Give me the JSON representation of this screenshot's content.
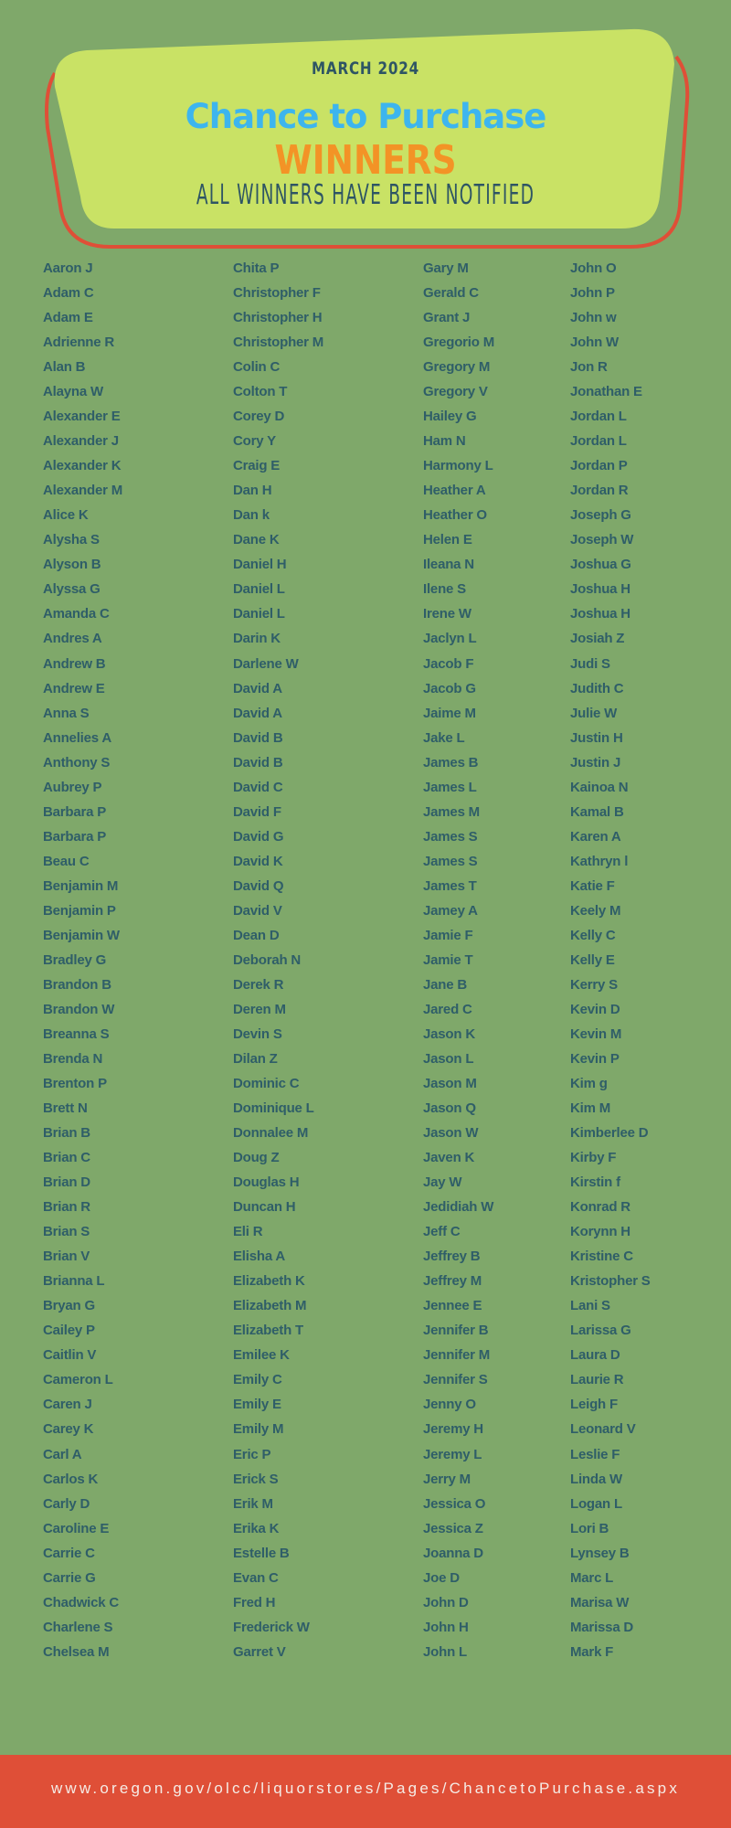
{
  "header": {
    "month": "MARCH 2024",
    "title": "Chance to Purchase",
    "winners": "WINNERS",
    "subtitle": "ALL WINNERS HAVE BEEN NOTIFIED"
  },
  "colors": {
    "background": "#7fa86a",
    "banner": "#c9e265",
    "outline": "#df4f37",
    "title": "#3db5ee",
    "winners": "#f39326",
    "text": "#2f5e68"
  },
  "winners": {
    "columns": [
      [
        "Aaron J",
        "Adam C",
        "Adam E",
        "Adrienne R",
        "Alan B",
        "Alayna W",
        "Alexander E",
        "Alexander J",
        "Alexander K",
        "Alexander M",
        "Alice K",
        "Alysha S",
        "Alyson B",
        "Alyssa G",
        "Amanda C",
        "Andres A",
        "Andrew B",
        "Andrew E",
        "Anna S",
        "Annelies A",
        "Anthony S",
        "Aubrey P",
        "Barbara P",
        "Barbara P",
        "Beau C",
        "Benjamin M",
        "Benjamin P",
        "Benjamin W",
        "Bradley G",
        "Brandon B",
        "Brandon W",
        "Breanna S",
        "Brenda N",
        "Brenton P",
        "Brett N",
        "Brian B",
        "Brian C",
        "Brian D",
        "Brian R",
        "Brian S",
        "Brian V",
        "Brianna L",
        "Bryan G",
        "Cailey P",
        "Caitlin V",
        "Cameron L",
        "Caren J",
        "Carey K",
        "Carl A",
        "Carlos K",
        "Carly D",
        "Caroline E",
        "Carrie C",
        "Carrie G",
        "Chadwick C",
        "Charlene S",
        "Chelsea M"
      ],
      [
        "Chita P",
        "Christopher F",
        "Christopher H",
        "Christopher M",
        "Colin C",
        "Colton T",
        "Corey D",
        "Cory Y",
        "Craig E",
        "Dan H",
        "Dan k",
        "Dane K",
        "Daniel H",
        "Daniel L",
        "Daniel L",
        "Darin K",
        "Darlene W",
        "David A",
        "David A",
        "David B",
        "David B",
        "David C",
        "David F",
        "David G",
        "David K",
        "David Q",
        "David V",
        "Dean D",
        "Deborah N",
        "Derek R",
        "Deren M",
        "Devin S",
        "Dilan Z",
        "Dominic C",
        "Dominique L",
        "Donnalee M",
        "Doug Z",
        "Douglas H",
        "Duncan H",
        "Eli R",
        "Elisha A",
        "Elizabeth K",
        "Elizabeth M",
        "Elizabeth T",
        "Emilee K",
        "Emily C",
        "Emily E",
        "Emily M",
        "Eric P",
        "Erick S",
        "Erik M",
        "Erika K",
        "Estelle B",
        "Evan C",
        "Fred H",
        "Frederick W",
        "Garret V"
      ],
      [
        "Gary M",
        "Gerald C",
        "Grant J",
        "Gregorio M",
        "Gregory M",
        "Gregory V",
        "Hailey G",
        "Ham N",
        "Harmony L",
        "Heather A",
        "Heather O",
        "Helen E",
        "Ileana N",
        "Ilene S",
        "Irene W",
        "Jaclyn L",
        "Jacob F",
        "Jacob G",
        "Jaime M",
        "Jake L",
        "James B",
        "James L",
        "James M",
        "James S",
        "James S",
        "James T",
        "Jamey A",
        "Jamie F",
        "Jamie T",
        "Jane B",
        "Jared C",
        "Jason K",
        "Jason L",
        "Jason M",
        "Jason Q",
        "Jason W",
        "Javen K",
        "Jay W",
        "Jedidiah W",
        "Jeff C",
        "Jeffrey B",
        "Jeffrey M",
        "Jennee E",
        "Jennifer B",
        "Jennifer M",
        "Jennifer S",
        "Jenny O",
        "Jeremy H",
        "Jeremy L",
        "Jerry M",
        "Jessica O",
        "Jessica Z",
        "Joanna D",
        "Joe D",
        "John D",
        "John H",
        "John L"
      ],
      [
        "John O",
        "John P",
        "John w",
        "John W",
        "Jon R",
        "Jonathan E",
        "Jordan L",
        "Jordan L",
        "Jordan P",
        "Jordan R",
        "Joseph G",
        "Joseph W",
        "Joshua G",
        "Joshua H",
        "Joshua H",
        "Josiah Z",
        "Judi S",
        "Judith C",
        "Julie W",
        "Justin H",
        "Justin J",
        "Kainoa N",
        "Kamal B",
        "Karen A",
        "Kathryn l",
        "Katie F",
        "Keely M",
        "Kelly C",
        "Kelly E",
        "Kerry S",
        "Kevin D",
        "Kevin M",
        "Kevin P",
        "Kim g",
        "Kim M",
        "Kimberlee D",
        "Kirby F",
        "Kirstin f",
        "Konrad R",
        "Korynn H",
        "Kristine C",
        "Kristopher S",
        "Lani S",
        "Larissa G",
        "Laura D",
        "Laurie R",
        "Leigh F",
        "Leonard V",
        "Leslie F",
        "Linda W",
        "Logan L",
        "Lori B",
        "Lynsey B",
        "Marc L",
        "Marisa W",
        "Marissa D",
        "Mark F"
      ]
    ]
  },
  "footer": {
    "url": "www.oregon.gov/olcc/liquorstores/Pages/ChancetoPurchase.aspx"
  }
}
